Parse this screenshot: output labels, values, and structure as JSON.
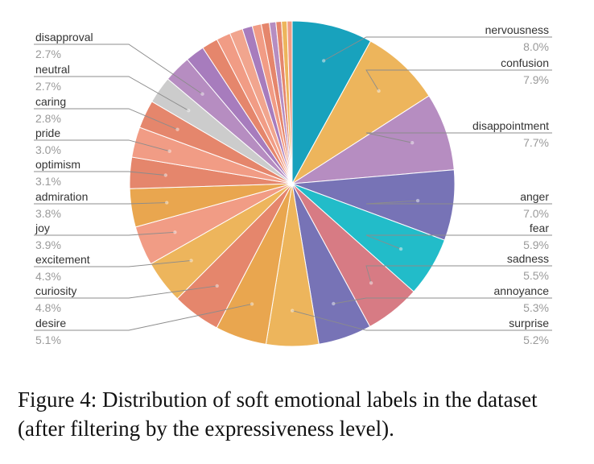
{
  "chart_data": {
    "type": "pie",
    "title": "",
    "labeled_slices": [
      {
        "name": "nervousness",
        "value": 8.0,
        "value_label": "8.0%",
        "color": "#18A2BD",
        "side": "right"
      },
      {
        "name": "confusion",
        "value": 7.9,
        "value_label": "7.9%",
        "color": "#EDB55C",
        "side": "right"
      },
      {
        "name": "disappointment",
        "value": 7.7,
        "value_label": "7.7%",
        "color": "#B68DC1",
        "side": "right"
      },
      {
        "name": "anger",
        "value": 7.0,
        "value_label": "7.0%",
        "color": "#7773B6",
        "side": "right"
      },
      {
        "name": "fear",
        "value": 5.9,
        "value_label": "5.9%",
        "color": "#22BCC9",
        "side": "right"
      },
      {
        "name": "sadness",
        "value": 5.5,
        "value_label": "5.5%",
        "color": "#D77B84",
        "side": "right"
      },
      {
        "name": "annoyance",
        "value": 5.3,
        "value_label": "5.3%",
        "color": "#7773B6",
        "side": "right"
      },
      {
        "name": "surprise",
        "value": 5.2,
        "value_label": "5.2%",
        "color": "#EDB55C",
        "side": "right"
      },
      {
        "name": "desire",
        "value": 5.1,
        "value_label": "5.1%",
        "color": "#E9A64F",
        "side": "left"
      },
      {
        "name": "curiosity",
        "value": 4.8,
        "value_label": "4.8%",
        "color": "#E5866C",
        "side": "left"
      },
      {
        "name": "excitement",
        "value": 4.3,
        "value_label": "4.3%",
        "color": "#EDB55C",
        "side": "left"
      },
      {
        "name": "joy",
        "value": 3.9,
        "value_label": "3.9%",
        "color": "#F19C85",
        "side": "left"
      },
      {
        "name": "admiration",
        "value": 3.8,
        "value_label": "3.8%",
        "color": "#E9A64F",
        "side": "left"
      },
      {
        "name": "optimism",
        "value": 3.1,
        "value_label": "3.1%",
        "color": "#E5866C",
        "side": "left"
      },
      {
        "name": "pride",
        "value": 3.0,
        "value_label": "3.0%",
        "color": "#F19C85",
        "side": "left"
      },
      {
        "name": "caring",
        "value": 2.8,
        "value_label": "2.8%",
        "color": "#E5866C",
        "side": "left"
      },
      {
        "name": "neutral",
        "value": 2.7,
        "value_label": "2.7%",
        "color": "#CCCCCC",
        "side": "left"
      },
      {
        "name": "disapproval",
        "value": 2.7,
        "value_label": "2.7%",
        "color": "#B68DC1",
        "side": "left"
      }
    ],
    "unlabeled_slices": [
      {
        "value": 1.9,
        "color": "#A77CBD"
      },
      {
        "value": 1.6,
        "color": "#E5866C"
      },
      {
        "value": 1.4,
        "color": "#F19C85"
      },
      {
        "value": 1.3,
        "color": "#F1A58E"
      },
      {
        "value": 1.0,
        "color": "#A77CBD"
      },
      {
        "value": 0.9,
        "color": "#F19C85"
      },
      {
        "value": 0.8,
        "color": "#E5866C"
      },
      {
        "value": 0.65,
        "color": "#B68DC1"
      },
      {
        "value": 0.55,
        "color": "#E5866C"
      },
      {
        "value": 0.55,
        "color": "#EDB55C"
      },
      {
        "value": 0.5,
        "color": "#F19C85"
      }
    ]
  },
  "caption": "Figure 4: Distribution of soft emotional labels in the dataset (after filtering by the expressiveness level)."
}
